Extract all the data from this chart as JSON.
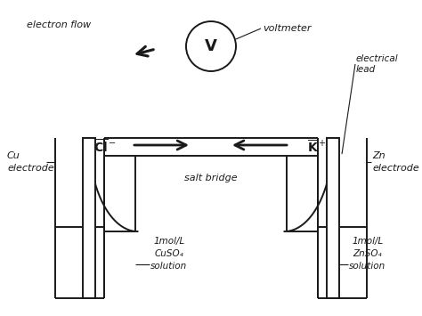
{
  "bg_color": "#ffffff",
  "line_color": "#1a1a1a",
  "text_color": "#1a1a1a",
  "left_electrode_label": "Cu\nelectrode",
  "right_electrode_label": "Zn\nelectrode",
  "left_solution": "1mol/L\nCuSO₄\nsolution",
  "right_solution": "1mol/L\nZnSO₄\nsolution",
  "salt_bridge_label": "salt bridge",
  "voltmeter_label": "V",
  "voltmeter_annotation": "voltmeter",
  "electron_flow_label": "electron flow",
  "electrical_lead_label": "electrical\nlead",
  "cl_ion_label": "Cl⁻",
  "k_ion_label": "K⁺"
}
